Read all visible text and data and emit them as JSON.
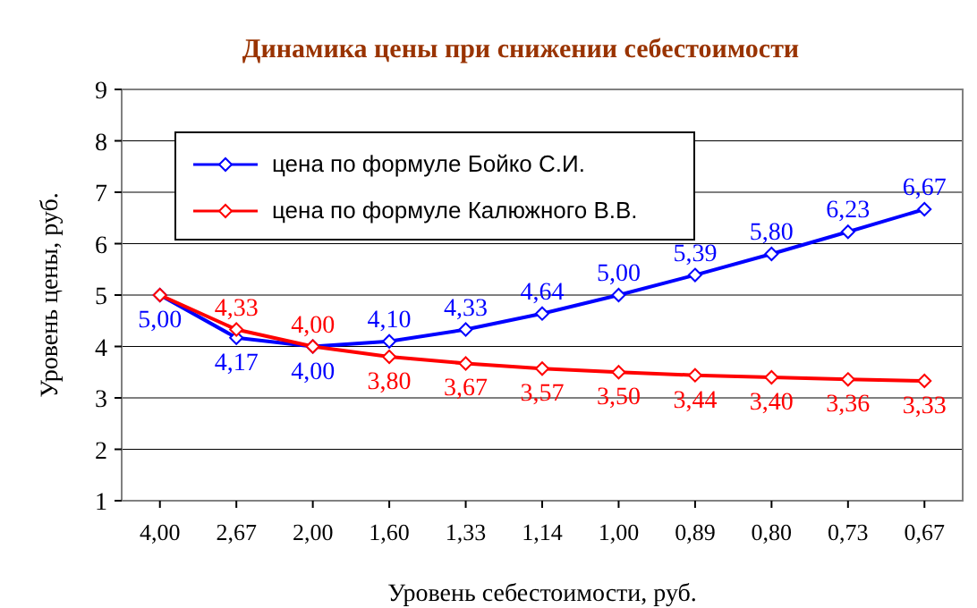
{
  "chart_data": {
    "type": "line",
    "title": "Динамика цены при снижении себестоимости",
    "xlabel": "Уровень себестоимости, руб.",
    "ylabel": "Уровень цены, руб.",
    "categories": [
      "4,00",
      "2,67",
      "2,00",
      "1,60",
      "1,33",
      "1,14",
      "1,00",
      "0,89",
      "0,80",
      "0,73",
      "0,67"
    ],
    "series": [
      {
        "name": "цена по формуле Бойко С.И.",
        "color": "#0000ff",
        "values": [
          5.0,
          4.17,
          4.0,
          4.1,
          4.33,
          4.64,
          5.0,
          5.39,
          5.8,
          6.23,
          6.67
        ],
        "value_labels": [
          "5,00",
          "4,17",
          "4,00",
          "4,10",
          "4,33",
          "4,64",
          "5,00",
          "5,39",
          "5,80",
          "6,23",
          "6,67"
        ]
      },
      {
        "name": "цена по формуле Калюжного В.В.",
        "color": "#ff0000",
        "values": [
          5.0,
          4.33,
          4.0,
          3.8,
          3.67,
          3.57,
          3.5,
          3.44,
          3.4,
          3.36,
          3.33
        ],
        "value_labels": [
          null,
          "4,33",
          "4,00",
          "3,80",
          "3,67",
          "3,57",
          "3,50",
          "3,44",
          "3,40",
          "3,36",
          "3,33"
        ]
      }
    ],
    "ylim": [
      1,
      9
    ],
    "yticks": [
      1,
      2,
      3,
      4,
      5,
      6,
      7,
      8,
      9
    ],
    "grid": "y",
    "legend": "top left",
    "marker": "diamond",
    "line_style": "solid"
  }
}
